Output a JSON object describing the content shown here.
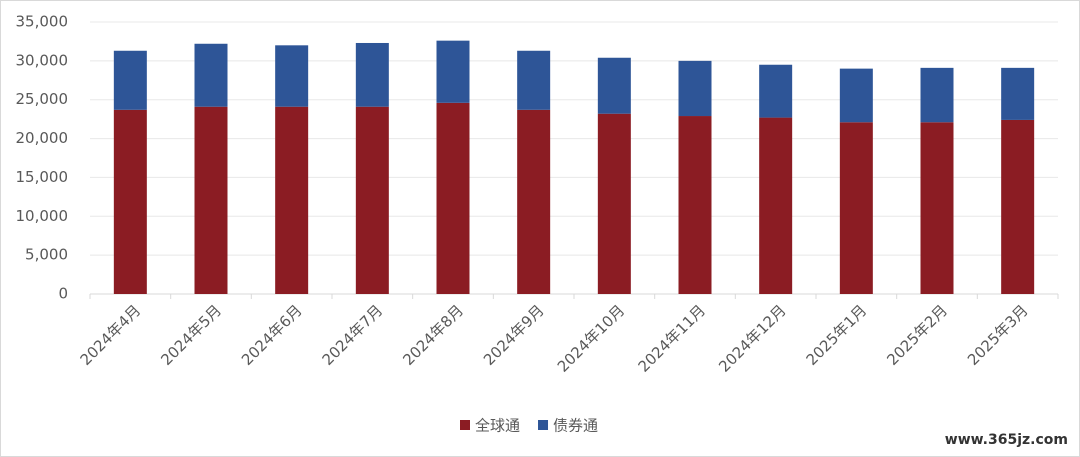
{
  "chart_data": {
    "type": "stacked_bar",
    "categories": [
      "2024年4月",
      "2024年5月",
      "2024年6月",
      "2024年7月",
      "2024年8月",
      "2024年9月",
      "2024年10月",
      "2024年11月",
      "2024年12月",
      "2025年1月",
      "2025年2月",
      "2025年3月"
    ],
    "series": [
      {
        "name": "全球通",
        "color": "#8b1c23",
        "values": [
          23700,
          24100,
          24100,
          24100,
          24600,
          23700,
          23200,
          22900,
          22700,
          22100,
          22100,
          22400
        ]
      },
      {
        "name": "债券通",
        "color": "#2e5597",
        "values": [
          7600,
          8100,
          7900,
          8200,
          8000,
          7600,
          7200,
          7100,
          6800,
          6900,
          7000,
          6700
        ]
      }
    ],
    "ylim": [
      0,
      35000
    ],
    "yticks": [
      0,
      {
        "value": 5000,
        "label": "5,000"
      },
      {
        "value": 10000,
        "label": "10,000"
      },
      {
        "value": 15000,
        "label": "15,000"
      },
      {
        "value": 20000,
        "label": "20,000"
      },
      {
        "value": 25000,
        "label": "25,000"
      },
      {
        "value": 30000,
        "label": "30,000"
      },
      {
        "value": 35000,
        "label": "35,000"
      }
    ],
    "grid": true,
    "legend": "bottom"
  },
  "watermark": "www.365jz.com"
}
